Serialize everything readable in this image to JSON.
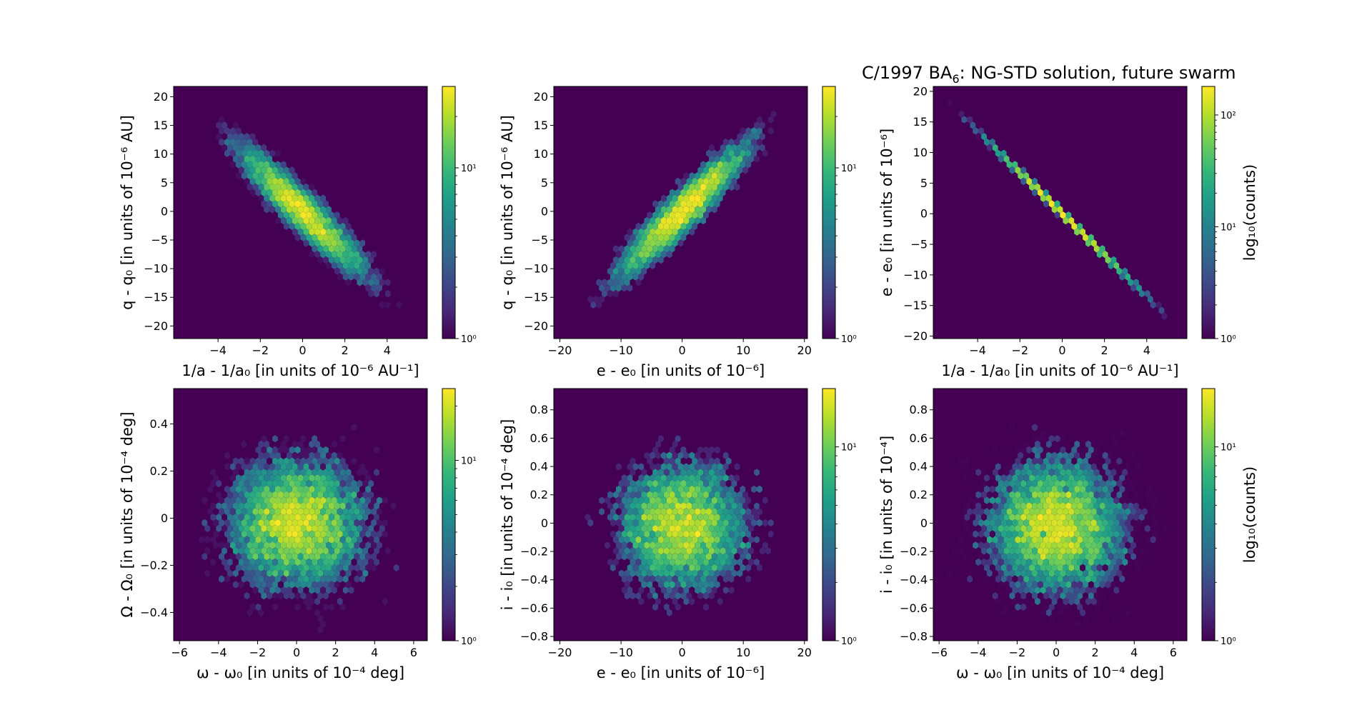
{
  "figure": {
    "title_main": "C/1997 BA",
    "title_sub": "6",
    "title_rest": ": NG-STD solution, future swarm"
  },
  "colormap": [
    "#440154",
    "#482878",
    "#3e4989",
    "#31688e",
    "#26828e",
    "#1f9e89",
    "#35b779",
    "#6ece58",
    "#b5de2b",
    "#fde725"
  ],
  "chart_data": [
    {
      "id": "q_vs_inv_a",
      "type": "heatmap",
      "style": "hexbin",
      "xlabel": "1/a - 1/a₀ [in units of 10⁻⁶ AU⁻¹]",
      "ylabel": "q - q₀ [in units of 10⁻⁶ AU]",
      "xlim": [
        -6.1,
        5.9
      ],
      "ylim": [
        -22.2,
        21.8
      ],
      "xticks": [
        -4,
        -2,
        0,
        2,
        4
      ],
      "yticks": [
        -20,
        -15,
        -10,
        -5,
        0,
        5,
        10,
        15,
        20
      ],
      "colorbar": {
        "scale": "log",
        "min": 1,
        "max": 30,
        "ticks": [
          1,
          10
        ],
        "tick_labels": [
          "10⁰",
          "10¹"
        ],
        "label": ""
      },
      "distribution": {
        "mean": [
          0,
          0
        ],
        "sd": [
          1.6,
          6.0
        ],
        "correlation": -0.93,
        "n": 8000,
        "peak_count": 30
      }
    },
    {
      "id": "q_vs_e",
      "type": "heatmap",
      "style": "hexbin",
      "xlabel": "e - e₀ [in units of 10⁻⁶]",
      "ylabel": "q - q₀ [in units of 10⁻⁶ AU]",
      "xlim": [
        -21,
        20.5
      ],
      "ylim": [
        -22.2,
        21.8
      ],
      "xticks": [
        -20,
        -10,
        0,
        10,
        20
      ],
      "yticks": [
        -20,
        -15,
        -10,
        -5,
        0,
        5,
        10,
        15,
        20
      ],
      "colorbar": {
        "scale": "log",
        "min": 1,
        "max": 30,
        "ticks": [
          1,
          10
        ],
        "tick_labels": [
          "10⁰",
          "10¹"
        ],
        "label": ""
      },
      "distribution": {
        "mean": [
          0,
          0
        ],
        "sd": [
          5.5,
          6.0
        ],
        "correlation": 0.93,
        "n": 8000,
        "peak_count": 30
      }
    },
    {
      "id": "e_vs_inv_a",
      "type": "heatmap",
      "style": "hexbin",
      "xlabel": "1/a - 1/a₀ [in units of 10⁻⁶ AU⁻¹]",
      "ylabel": "e - e₀ [in units of 10⁻⁶]",
      "xlim": [
        -6.1,
        5.9
      ],
      "ylim": [
        -20.4,
        20.8
      ],
      "xticks": [
        -4,
        -2,
        0,
        2,
        4
      ],
      "yticks": [
        -20,
        -15,
        -10,
        -5,
        0,
        5,
        10,
        15,
        20
      ],
      "colorbar": {
        "scale": "log",
        "min": 1,
        "max": 180,
        "ticks": [
          1,
          10,
          100
        ],
        "tick_labels": [
          "10⁰",
          "10¹",
          "10²"
        ],
        "label": "log₁₀(counts)"
      },
      "distribution": {
        "mean": [
          0,
          0
        ],
        "sd": [
          1.6,
          5.4
        ],
        "correlation": -0.9998,
        "n": 8000,
        "peak_count": 180
      }
    },
    {
      "id": "Omega_vs_omega",
      "type": "heatmap",
      "style": "hexbin",
      "xlabel": "ω - ω₀ [in units of 10⁻⁴ deg]",
      "ylabel": "Ω - Ω₀ [in units of 10⁻⁴ deg]",
      "xlim": [
        -6.3,
        6.7
      ],
      "ylim": [
        -0.52,
        0.55
      ],
      "xticks": [
        -6,
        -4,
        -2,
        0,
        2,
        4,
        6
      ],
      "yticks": [
        -0.4,
        -0.2,
        0.0,
        0.2,
        0.4
      ],
      "colorbar": {
        "scale": "log",
        "min": 1,
        "max": 25,
        "ticks": [
          1,
          10
        ],
        "tick_labels": [
          "10⁰",
          "10¹"
        ],
        "label": ""
      },
      "distribution": {
        "mean": [
          0,
          -0.02
        ],
        "sd": [
          1.8,
          0.14
        ],
        "correlation": 0.0,
        "n": 8000,
        "peak_count": 25
      }
    },
    {
      "id": "i_vs_e",
      "type": "heatmap",
      "style": "hexbin",
      "xlabel": "e - e₀ [in units of 10⁻⁶]",
      "ylabel": "i - i₀ [in units of 10⁻⁴ deg]",
      "xlim": [
        -21,
        20.5
      ],
      "ylim": [
        -0.83,
        0.95
      ],
      "xticks": [
        -20,
        -10,
        0,
        10,
        20
      ],
      "yticks": [
        -0.8,
        -0.6,
        -0.4,
        -0.2,
        0.0,
        0.2,
        0.4,
        0.6,
        0.8
      ],
      "colorbar": {
        "scale": "log",
        "min": 1,
        "max": 20,
        "ticks": [
          1,
          10
        ],
        "tick_labels": [
          "10⁰",
          "10¹"
        ],
        "label": ""
      },
      "distribution": {
        "mean": [
          0,
          -0.02
        ],
        "sd": [
          5.5,
          0.24
        ],
        "correlation": 0.0,
        "n": 8000,
        "peak_count": 20
      }
    },
    {
      "id": "i_vs_omega",
      "type": "heatmap",
      "style": "hexbin",
      "xlabel": "ω - ω₀ [in units of 10⁻⁴ deg]",
      "ylabel": "i - i₀ [in units of 10⁻⁴]",
      "xlim": [
        -6.3,
        6.7
      ],
      "ylim": [
        -0.83,
        0.95
      ],
      "xticks": [
        -6,
        -4,
        -2,
        0,
        2,
        4,
        6
      ],
      "yticks": [
        -0.8,
        -0.6,
        -0.4,
        -0.2,
        0.0,
        0.2,
        0.4,
        0.6,
        0.8
      ],
      "colorbar": {
        "scale": "log",
        "min": 1,
        "max": 20,
        "ticks": [
          1,
          10
        ],
        "tick_labels": [
          "10⁰",
          "10¹"
        ],
        "label": "log₁₀(counts)"
      },
      "distribution": {
        "mean": [
          0,
          -0.02
        ],
        "sd": [
          1.8,
          0.24
        ],
        "correlation": 0.0,
        "n": 8000,
        "peak_count": 20
      }
    }
  ]
}
